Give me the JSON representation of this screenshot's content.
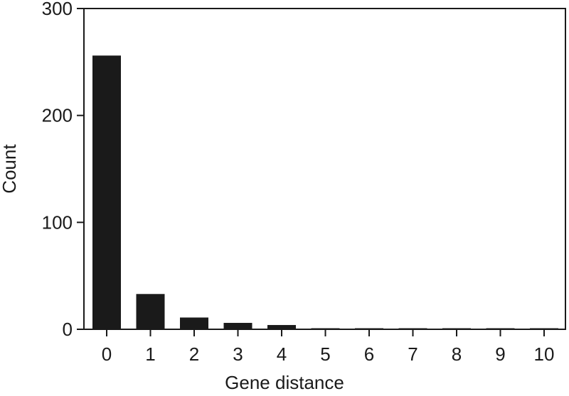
{
  "chart_data": {
    "type": "bar",
    "xlabel": "Gene distance",
    "ylabel": "Count",
    "categories": [
      "0",
      "1",
      "2",
      "3",
      "4",
      "5",
      "6",
      "7",
      "8",
      "9",
      "10"
    ],
    "values": [
      256,
      33,
      11,
      6,
      4,
      1,
      1,
      1,
      1,
      1,
      1
    ],
    "color": "#1a1a1a",
    "ylim": [
      0,
      300
    ],
    "yticks": [
      0,
      100,
      200,
      300
    ],
    "grid": false
  }
}
